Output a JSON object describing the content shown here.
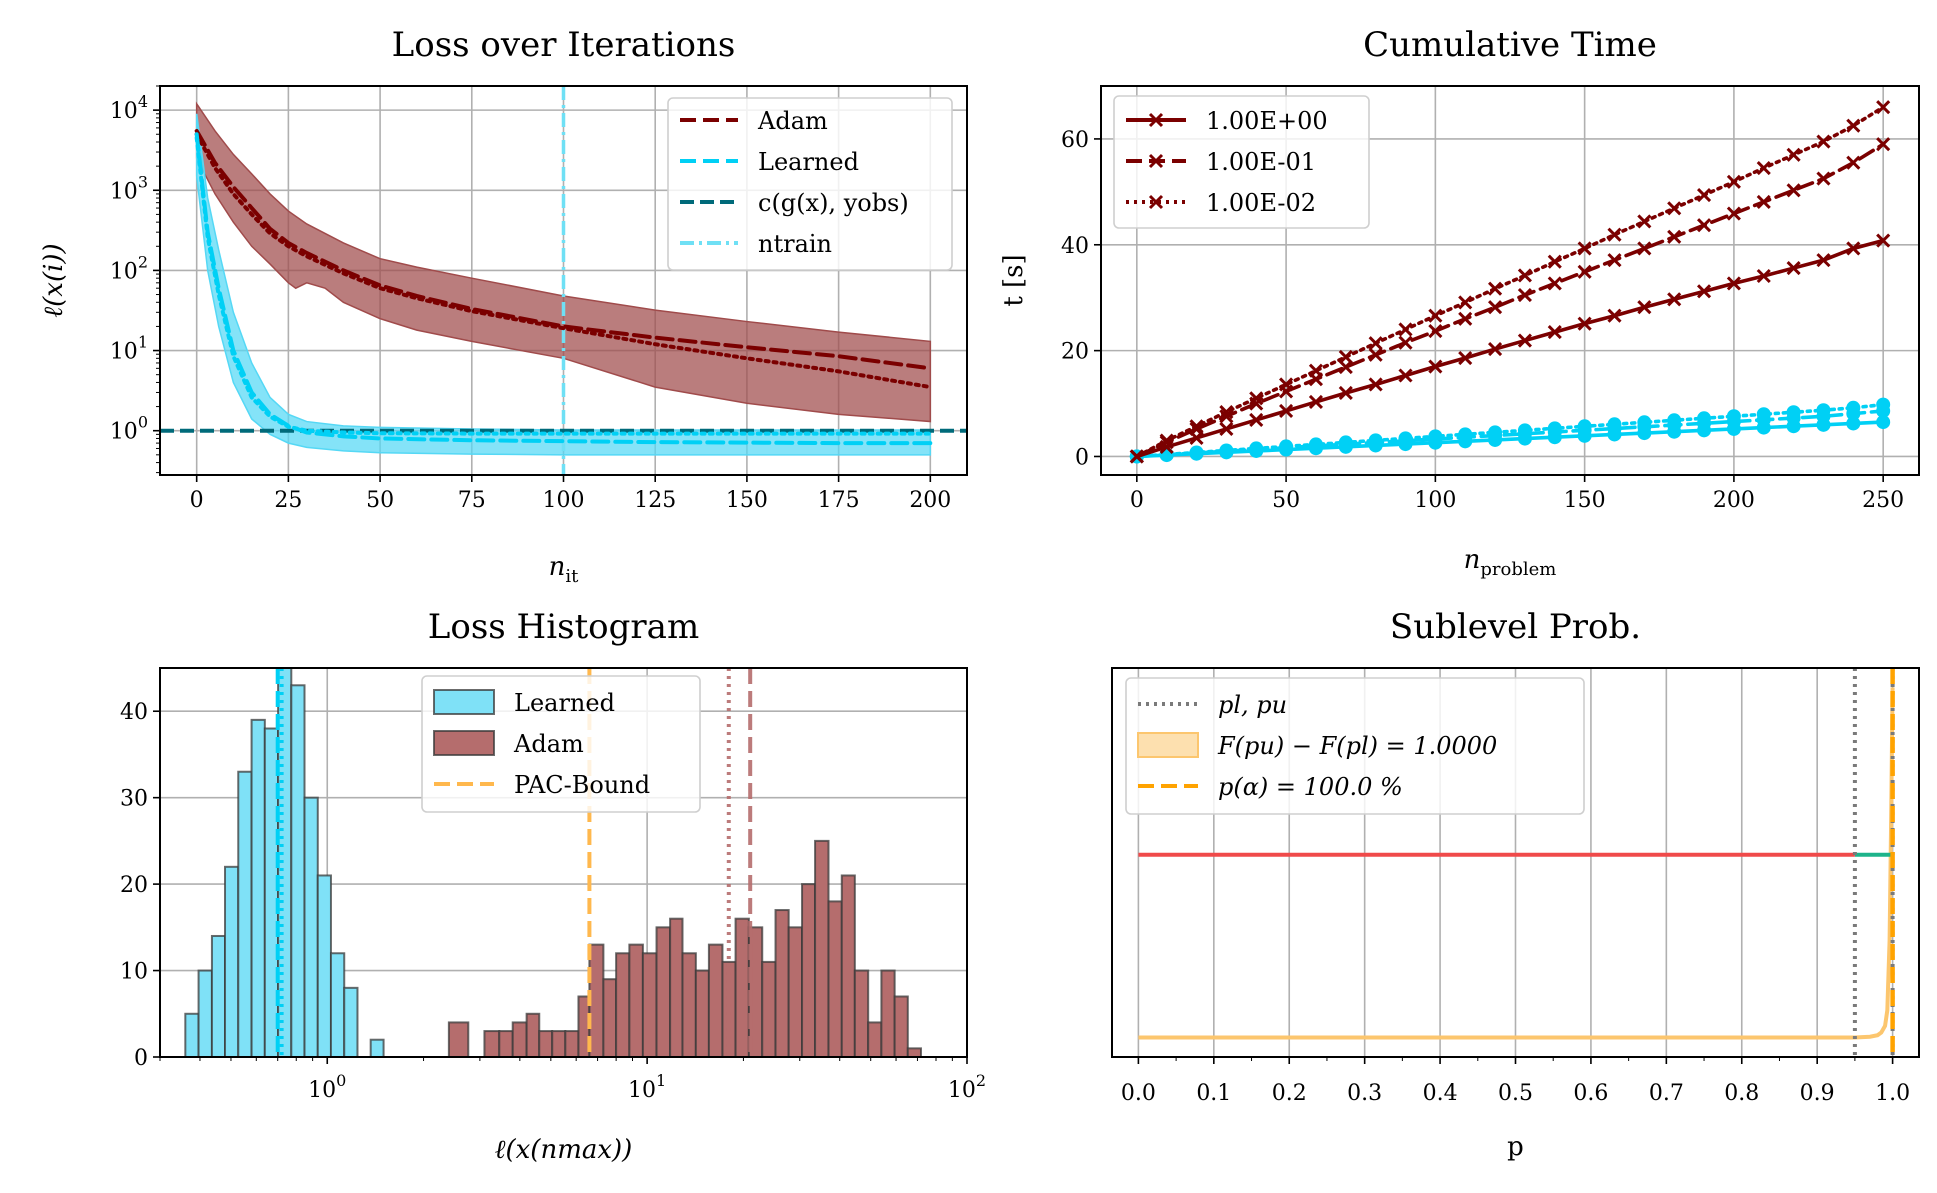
{
  "figure": {
    "background": "#ffffff"
  },
  "colors": {
    "adam": "#7b0000",
    "adam_band": "#a04b4b",
    "learned": "#00d0f5",
    "learned_band": "#55d8f5",
    "c_line": "#006a7a",
    "ntrain": "#6fe0f5",
    "hist_learned": "#7fe1f7",
    "hist_adam": "#b56d6d",
    "pac": "#ffb84d",
    "pl_pu": "#7a7a7a",
    "red_line": "#f04a4a",
    "green_line": "#1db38a",
    "cdf": "#fcc66e",
    "p_alpha": "#ffa300"
  },
  "chart_data": [
    {
      "id": "loss",
      "type": "line",
      "title": "Loss over Iterations",
      "xlabel_base": "n",
      "xlabel_sub": "it",
      "ylabel": "ℓ(x(i))",
      "yscale": "log",
      "xlim": [
        -10,
        210
      ],
      "ylim": [
        0.28,
        20000
      ],
      "xticks": [
        0,
        25,
        50,
        75,
        100,
        125,
        150,
        175,
        200
      ],
      "yticks": [
        1,
        10,
        100,
        1000,
        10000
      ],
      "ytick_labels": [
        {
          "base": "10",
          "exp": "0"
        },
        {
          "base": "10",
          "exp": "1"
        },
        {
          "base": "10",
          "exp": "2"
        },
        {
          "base": "10",
          "exp": "3"
        },
        {
          "base": "10",
          "exp": "4"
        }
      ],
      "grid": true,
      "legend": {
        "location": "upper right",
        "entries": [
          "Adam",
          "Learned",
          "c(g(x), yobs)",
          "ntrain"
        ]
      },
      "ntrain": 100,
      "c_value": 1.0,
      "series": [
        {
          "name": "Adam",
          "style": "dashed",
          "x": [
            0,
            5,
            10,
            15,
            20,
            25,
            30,
            40,
            50,
            60,
            75,
            100,
            125,
            150,
            175,
            200
          ],
          "y": [
            5500,
            2200,
            1100,
            600,
            330,
            220,
            165,
            100,
            65,
            48,
            33,
            20,
            14.5,
            11,
            8.5,
            6
          ]
        },
        {
          "name": "Adam (dotted)",
          "style": "dotted",
          "x": [
            0,
            5,
            10,
            15,
            20,
            25,
            30,
            40,
            50,
            60,
            75,
            100,
            125,
            150,
            175,
            200
          ],
          "y": [
            5000,
            1900,
            900,
            500,
            290,
            200,
            150,
            92,
            60,
            45,
            31,
            19,
            12,
            8,
            5.5,
            3.5
          ]
        },
        {
          "name": "Adam (band upper)",
          "style": "band_upper",
          "x": [
            0,
            5,
            10,
            15,
            20,
            25,
            30,
            40,
            50,
            60,
            75,
            100,
            125,
            150,
            175,
            200
          ],
          "y": [
            12000,
            5500,
            2800,
            1600,
            900,
            550,
            380,
            220,
            140,
            110,
            80,
            48,
            32,
            23,
            17,
            13
          ]
        },
        {
          "name": "Adam (band lower)",
          "style": "band_lower",
          "x": [
            0,
            5,
            10,
            15,
            20,
            25,
            27,
            30,
            35,
            40,
            50,
            60,
            75,
            100,
            125,
            150,
            175,
            200
          ],
          "y": [
            2500,
            900,
            400,
            200,
            120,
            70,
            60,
            70,
            60,
            40,
            25,
            18,
            13,
            8,
            3.5,
            2.2,
            1.6,
            1.3
          ]
        },
        {
          "name": "Learned",
          "style": "dashed",
          "x": [
            0,
            3,
            6,
            10,
            15,
            20,
            25,
            30,
            40,
            50,
            75,
            100,
            125,
            150,
            175,
            200
          ],
          "y": [
            5000,
            300,
            60,
            10,
            3,
            1.6,
            1.15,
            0.95,
            0.85,
            0.8,
            0.76,
            0.74,
            0.72,
            0.71,
            0.7,
            0.7
          ]
        },
        {
          "name": "Learned (dotted)",
          "style": "dotted",
          "x": [
            0,
            3,
            6,
            10,
            15,
            20,
            25,
            30,
            40,
            50,
            75,
            100,
            125,
            150,
            175,
            200
          ],
          "y": [
            4500,
            260,
            50,
            8.5,
            2.6,
            1.5,
            1.12,
            1.0,
            0.95,
            0.93,
            0.92,
            0.92,
            0.92,
            0.92,
            0.92,
            0.92
          ]
        },
        {
          "name": "Learned (band upper)",
          "style": "band_upper",
          "x": [
            0,
            3,
            6,
            10,
            15,
            20,
            25,
            30,
            40,
            50,
            75,
            100,
            125,
            150,
            175,
            200
          ],
          "y": [
            9000,
            800,
            180,
            30,
            7,
            2.6,
            1.6,
            1.3,
            1.15,
            1.1,
            1.05,
            1.02,
            1.02,
            1.02,
            1.02,
            1.02
          ]
        },
        {
          "name": "Learned (band lower)",
          "style": "band_lower",
          "x": [
            0,
            3,
            6,
            10,
            15,
            20,
            25,
            30,
            40,
            50,
            75,
            100,
            125,
            150,
            175,
            200
          ],
          "y": [
            1500,
            100,
            20,
            4,
            1.4,
            0.9,
            0.7,
            0.62,
            0.56,
            0.53,
            0.51,
            0.5,
            0.5,
            0.5,
            0.5,
            0.5
          ]
        }
      ]
    },
    {
      "id": "time",
      "type": "line",
      "title": "Cumulative Time",
      "xlabel_base": "n",
      "xlabel_sub": "problem",
      "ylabel": "t [s]",
      "xlim": [
        -12,
        262
      ],
      "ylim": [
        -3.5,
        70
      ],
      "xticks": [
        0,
        50,
        100,
        150,
        200,
        250
      ],
      "yticks": [
        0,
        20,
        40,
        60
      ],
      "grid": true,
      "legend": {
        "location": "upper left",
        "entries": [
          "1.00E+00",
          "1.00E-01",
          "1.00E-02"
        ]
      },
      "series": [
        {
          "name": "1.00E+00",
          "group": "adam",
          "style": "solid",
          "marker": "x",
          "x": [
            0,
            10,
            20,
            30,
            40,
            50,
            60,
            70,
            80,
            90,
            100,
            110,
            120,
            130,
            140,
            150,
            160,
            170,
            180,
            190,
            200,
            210,
            220,
            230,
            240,
            250
          ],
          "y": [
            0,
            1.8,
            3.5,
            5.2,
            6.9,
            8.6,
            10.3,
            12.0,
            13.6,
            15.3,
            17.0,
            18.6,
            20.3,
            21.9,
            23.5,
            25.1,
            26.6,
            28.2,
            29.7,
            31.2,
            32.7,
            34.1,
            35.6,
            37.1,
            39.3,
            40.8
          ]
        },
        {
          "name": "1.00E-01",
          "group": "adam",
          "style": "dashed",
          "marker": "x",
          "x": [
            0,
            10,
            20,
            30,
            40,
            50,
            60,
            70,
            80,
            90,
            100,
            110,
            120,
            130,
            140,
            150,
            160,
            170,
            180,
            190,
            200,
            210,
            220,
            230,
            240,
            250
          ],
          "y": [
            0,
            2.7,
            5.2,
            7.6,
            10.0,
            12.3,
            14.6,
            16.9,
            19.2,
            21.5,
            23.7,
            26.0,
            28.2,
            30.5,
            32.7,
            34.9,
            37.1,
            39.3,
            41.5,
            43.7,
            45.9,
            48.1,
            50.3,
            52.5,
            55.5,
            59.0
          ]
        },
        {
          "name": "1.00E-02",
          "group": "adam",
          "style": "dotted",
          "marker": "x",
          "x": [
            0,
            10,
            20,
            30,
            40,
            50,
            60,
            70,
            80,
            90,
            100,
            110,
            120,
            130,
            140,
            150,
            160,
            170,
            180,
            190,
            200,
            210,
            220,
            230,
            240,
            250
          ],
          "y": [
            0,
            3.0,
            5.7,
            8.4,
            11.0,
            13.6,
            16.2,
            18.8,
            21.4,
            24.0,
            26.6,
            29.1,
            31.7,
            34.2,
            36.8,
            39.3,
            41.9,
            44.4,
            46.9,
            49.4,
            51.9,
            54.5,
            57.0,
            59.5,
            62.5,
            66.0
          ]
        },
        {
          "name": "Learned 1.00E+00",
          "group": "learned",
          "style": "solid",
          "marker": "o",
          "x": [
            0,
            10,
            20,
            30,
            40,
            50,
            60,
            70,
            80,
            90,
            100,
            110,
            120,
            130,
            140,
            150,
            160,
            170,
            180,
            190,
            200,
            210,
            220,
            230,
            240,
            250
          ],
          "y": [
            0,
            0.26,
            0.52,
            0.78,
            1.04,
            1.3,
            1.56,
            1.82,
            2.08,
            2.34,
            2.6,
            2.86,
            3.12,
            3.38,
            3.64,
            3.9,
            4.16,
            4.42,
            4.68,
            4.94,
            5.2,
            5.46,
            5.72,
            5.98,
            6.24,
            6.5
          ]
        },
        {
          "name": "Learned 1.00E-01",
          "group": "learned",
          "style": "dashed",
          "marker": "o",
          "x": [
            0,
            10,
            20,
            30,
            40,
            50,
            60,
            70,
            80,
            90,
            100,
            110,
            120,
            130,
            140,
            150,
            160,
            170,
            180,
            190,
            200,
            210,
            220,
            230,
            240,
            250
          ],
          "y": [
            0,
            0.33,
            0.66,
            0.99,
            1.32,
            1.65,
            1.98,
            2.31,
            2.64,
            2.97,
            3.3,
            3.63,
            3.96,
            4.29,
            4.62,
            4.95,
            5.28,
            5.61,
            5.94,
            6.27,
            6.6,
            6.93,
            7.26,
            7.59,
            8.1,
            8.6
          ]
        },
        {
          "name": "Learned 1.00E-02",
          "group": "learned",
          "style": "dotted",
          "marker": "o",
          "x": [
            0,
            10,
            20,
            30,
            40,
            50,
            60,
            70,
            80,
            90,
            100,
            110,
            120,
            130,
            140,
            150,
            160,
            170,
            180,
            190,
            200,
            210,
            220,
            230,
            240,
            250
          ],
          "y": [
            0,
            0.38,
            0.76,
            1.14,
            1.52,
            1.9,
            2.28,
            2.66,
            3.04,
            3.42,
            3.8,
            4.18,
            4.56,
            4.94,
            5.32,
            5.7,
            6.08,
            6.46,
            6.84,
            7.22,
            7.6,
            7.98,
            8.36,
            8.74,
            9.2,
            9.8
          ]
        }
      ]
    },
    {
      "id": "hist",
      "type": "bar",
      "subtype": "histogram",
      "title": "Loss Histogram",
      "xlabel": "ℓ(x(nmax))",
      "xscale": "log",
      "xlim": [
        0.3,
        100
      ],
      "ylim": [
        0,
        45
      ],
      "xticks": [
        1,
        10,
        100
      ],
      "xtick_labels": [
        {
          "base": "10",
          "exp": "0"
        },
        {
          "base": "10",
          "exp": "1"
        },
        {
          "base": "10",
          "exp": "2"
        }
      ],
      "yticks": [
        0,
        10,
        20,
        30,
        40
      ],
      "grid": true,
      "legend": {
        "location": "upper center",
        "entries": [
          "Learned",
          "Adam",
          "PAC-Bound"
        ]
      },
      "vlines": [
        {
          "name": "Learned mean",
          "x": 0.72,
          "style": "dotted"
        },
        {
          "name": "Learned median",
          "x": 0.7,
          "style": "dashed"
        },
        {
          "name": "PAC-Bound",
          "x": 6.6,
          "style": "dashed"
        },
        {
          "name": "Adam dotted",
          "x": 18,
          "style": "dotted"
        },
        {
          "name": "Adam dashed",
          "x": 21,
          "style": "dashed"
        }
      ],
      "series": [
        {
          "name": "Learned",
          "edges": [
            0.36,
            0.396,
            0.436,
            0.479,
            0.527,
            0.58,
            0.638,
            0.702,
            0.772,
            0.849,
            0.934,
            1.027,
            1.13,
            1.243,
            1.367,
            1.5
          ],
          "values": [
            5,
            10,
            14,
            22,
            33,
            39,
            38,
            45,
            43,
            30,
            21,
            12,
            8,
            0,
            2
          ]
        },
        {
          "name": "Adam",
          "edges": [
            2.4,
            2.76,
            3.1,
            3.45,
            3.8,
            4.2,
            4.6,
            5.05,
            5.55,
            6.1,
            6.6,
            7.3,
            8.0,
            8.8,
            9.7,
            10.7,
            11.8,
            12.9,
            14.2,
            15.6,
            17.2,
            18.9,
            20.8,
            22.9,
            25.2,
            27.7,
            30.5,
            33.5,
            36.9,
            40.6,
            44.6,
            49.1,
            54.0,
            59.4,
            65.3,
            71.8,
            79.0
          ],
          "values": [
            4,
            0,
            3,
            3,
            4,
            5,
            3,
            3,
            3,
            7,
            13,
            9,
            12,
            13,
            12,
            15,
            16,
            12,
            10,
            13,
            11,
            16,
            15,
            11,
            17,
            15,
            20,
            25,
            18,
            21,
            10,
            4,
            10,
            7,
            1,
            0
          ]
        }
      ]
    },
    {
      "id": "sublevel",
      "type": "line",
      "title": "Sublevel Prob.",
      "xlabel": "p",
      "xlim": [
        -0.035,
        1.035
      ],
      "ylim": [
        0,
        1
      ],
      "xticks": [
        0.0,
        0.1,
        0.2,
        0.3,
        0.4,
        0.5,
        0.6,
        0.7,
        0.8,
        0.9,
        1.0
      ],
      "xtick_labels": [
        "0.0",
        "0.1",
        "0.2",
        "0.3",
        "0.4",
        "0.5",
        "0.6",
        "0.7",
        "0.8",
        "0.9",
        "1.0"
      ],
      "grid": true,
      "legend": {
        "location": "upper left",
        "entries": [
          "pl, pu",
          "F(pu) − F(pl) = 1.0000",
          "p(α) = 100.0 %"
        ]
      },
      "p_l": 0.95,
      "p_u": 1.0,
      "p_alpha": 1.0,
      "red_line": {
        "x": [
          0.0,
          0.95
        ],
        "y": 0.52
      },
      "green_line": {
        "x": [
          0.95,
          1.0
        ],
        "y": 0.52
      },
      "cdf_curve": {
        "x": [
          0.0,
          0.9,
          0.95,
          0.97,
          0.98,
          0.985,
          0.99,
          0.993,
          0.996,
          0.998,
          1.0
        ],
        "y": [
          0.05,
          0.05,
          0.05,
          0.052,
          0.056,
          0.063,
          0.08,
          0.12,
          0.3,
          0.6,
          0.95
        ]
      }
    }
  ]
}
